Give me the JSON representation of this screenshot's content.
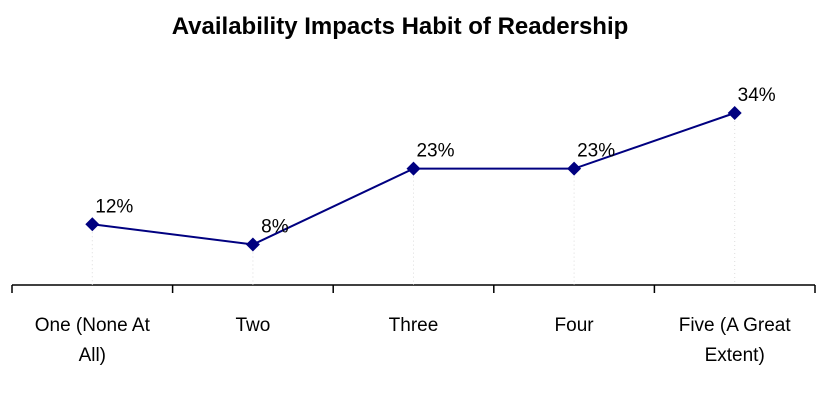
{
  "chart_data": {
    "type": "line",
    "title": "Availability Impacts Habit of Readership",
    "categories": [
      "One (None At All)",
      "Two",
      "Three",
      "Four",
      "Five (A Great Extent)"
    ],
    "values": [
      12,
      8,
      23,
      23,
      34
    ],
    "value_labels": [
      "12%",
      "8%",
      "23%",
      "23%",
      "34%"
    ],
    "color": "#000080"
  }
}
